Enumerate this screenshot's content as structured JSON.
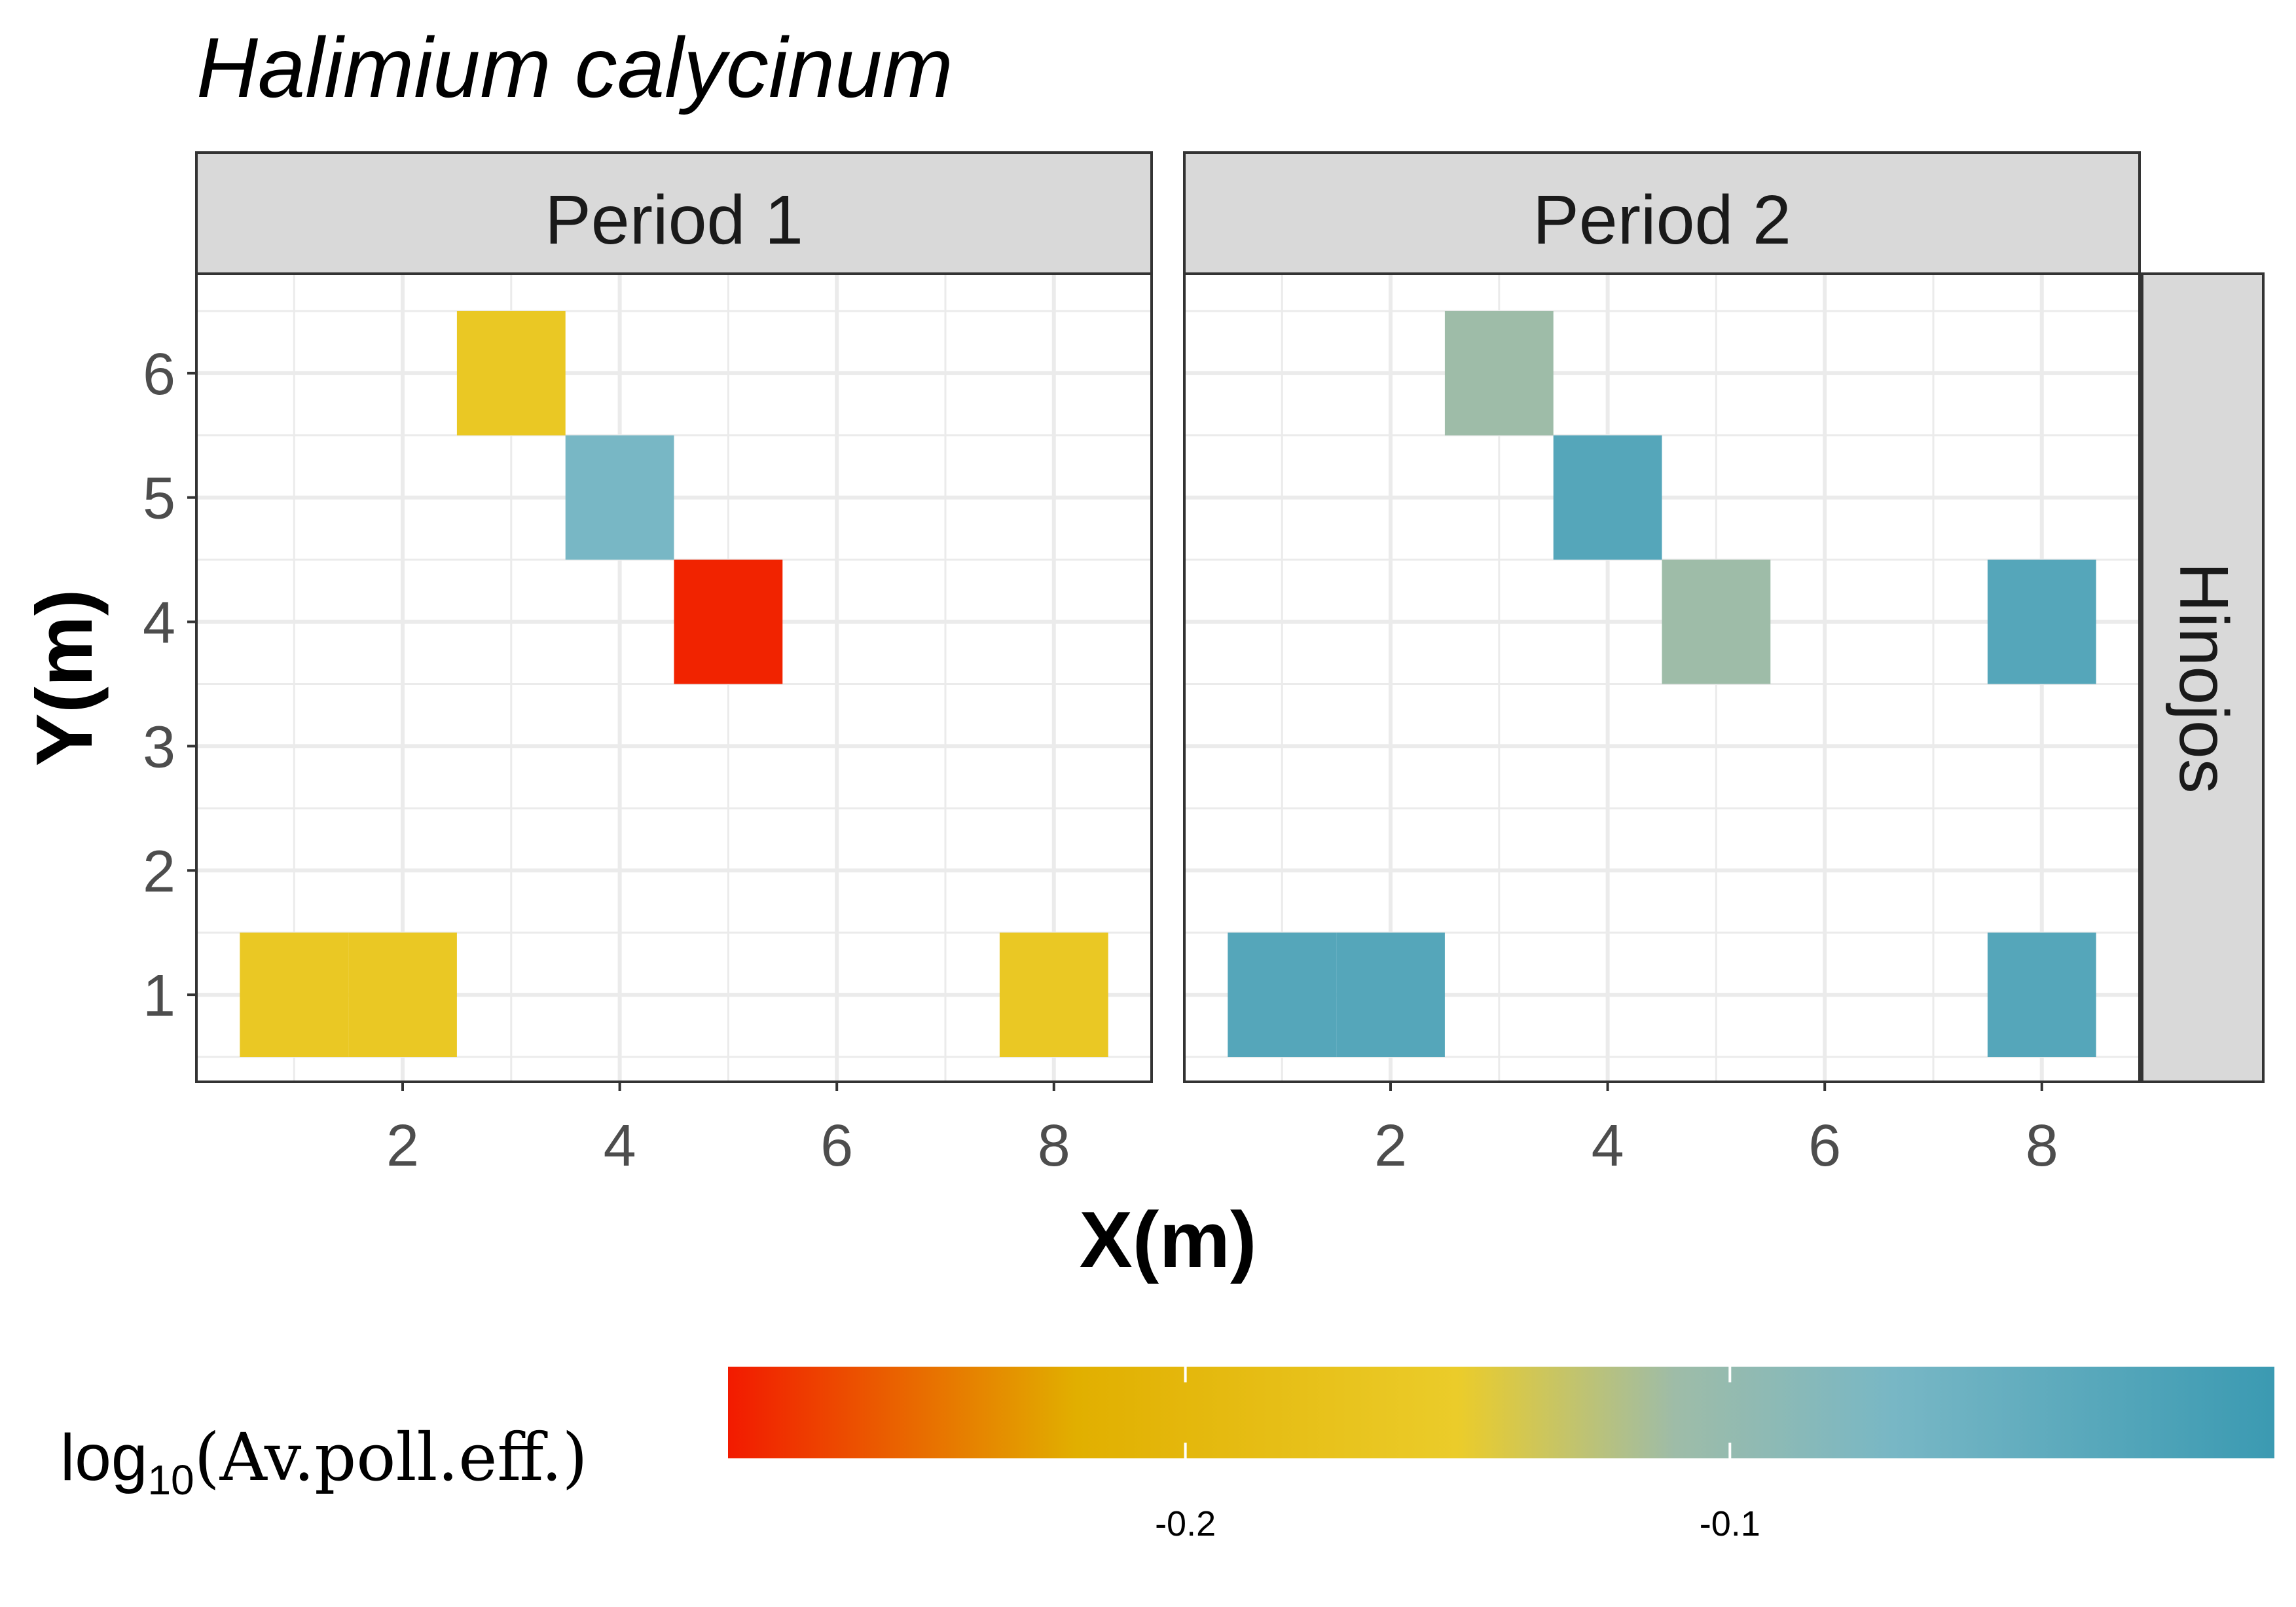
{
  "chart_data": {
    "type": "heatmap",
    "title": "Halimium calycinum",
    "xlabel": "X(m)",
    "ylabel": "Y(m)",
    "xlim": [
      0.1,
      8.9
    ],
    "ylim": [
      0.3,
      6.8
    ],
    "x_ticks": [
      2,
      4,
      6,
      8
    ],
    "y_ticks": [
      1,
      2,
      3,
      4,
      5,
      6
    ],
    "x_ticks_labels": [
      "2",
      "4",
      "6",
      "8"
    ],
    "y_ticks_labels": [
      "1",
      "2",
      "3",
      "4",
      "5",
      "6"
    ],
    "grid": true,
    "row_strip": "Hinojos",
    "panels": [
      {
        "name": "Period 1",
        "cells": [
          {
            "x": 3,
            "y": 6,
            "value": -0.16
          },
          {
            "x": 4,
            "y": 5,
            "value": -0.07
          },
          {
            "x": 5,
            "y": 4,
            "value": -0.28
          },
          {
            "x": 1,
            "y": 1,
            "value": -0.16
          },
          {
            "x": 2,
            "y": 1,
            "value": -0.16
          },
          {
            "x": 8,
            "y": 1,
            "value": -0.16
          }
        ]
      },
      {
        "name": "Period 2",
        "cells": [
          {
            "x": 3,
            "y": 6,
            "value": -0.11
          },
          {
            "x": 4,
            "y": 5,
            "value": -0.03
          },
          {
            "x": 5,
            "y": 4,
            "value": -0.11
          },
          {
            "x": 8,
            "y": 4,
            "value": -0.03
          },
          {
            "x": 1,
            "y": 1,
            "value": -0.03
          },
          {
            "x": 2,
            "y": 1,
            "value": -0.03
          },
          {
            "x": 8,
            "y": 1,
            "value": -0.03
          }
        ]
      }
    ],
    "legend": {
      "title_main": "log",
      "title_sub": "10",
      "title_rest": "(Av.poll.eff.)",
      "position": "bottom",
      "range": [
        -0.284,
        -0.0
      ]
    },
    "colorbar_ticks": [
      {
        "value": -0.2,
        "label": "-0.2"
      },
      {
        "value": -0.1,
        "label": "-0.1"
      }
    ],
    "color_scale": [
      {
        "value": -0.284,
        "color": "#F21A00"
      },
      {
        "value": -0.22,
        "color": "#E1AF00"
      },
      {
        "value": -0.15,
        "color": "#EBCC2A"
      },
      {
        "value": -0.11,
        "color": "#9EBCA8"
      },
      {
        "value": -0.07,
        "color": "#78B7C5"
      },
      {
        "value": 0.0,
        "color": "#3B9AB2"
      }
    ]
  }
}
